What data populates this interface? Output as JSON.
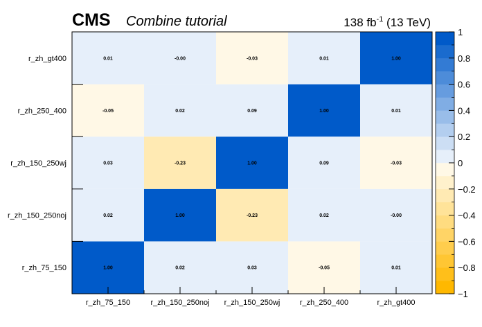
{
  "header": {
    "experiment": "CMS",
    "extra_text": "Combine tutorial",
    "lumi_value": "138 fb",
    "lumi_exp": "-1",
    "lumi_energy": " (13 TeV)"
  },
  "chart_data": {
    "type": "heatmap",
    "title": "",
    "x_labels": [
      "r_zh_75_150",
      "r_zh_150_250noj",
      "r_zh_150_250wj",
      "r_zh_250_400",
      "r_zh_gt400"
    ],
    "y_labels": [
      "r_zh_75_150",
      "r_zh_150_250noj",
      "r_zh_150_250wj",
      "r_zh_250_400",
      "r_zh_gt400"
    ],
    "y_order": "bottom-to-top",
    "values": [
      [
        1.0,
        0.02,
        0.03,
        -0.05,
        0.01
      ],
      [
        0.02,
        1.0,
        -0.23,
        0.02,
        -0.0
      ],
      [
        0.03,
        -0.23,
        1.0,
        0.09,
        -0.03
      ],
      [
        -0.05,
        0.02,
        0.09,
        1.0,
        0.01
      ],
      [
        0.01,
        -0.0,
        -0.03,
        0.01,
        1.0
      ]
    ],
    "cell_text": [
      [
        "1.00",
        "0.02",
        "0.03",
        "-0.05",
        "0.01"
      ],
      [
        "0.02",
        "1.00",
        "-0.23",
        "0.02",
        "-0.00"
      ],
      [
        "0.03",
        "-0.23",
        "1.00",
        "0.09",
        "-0.03"
      ],
      [
        "-0.05",
        "0.02",
        "0.09",
        "1.00",
        "0.01"
      ],
      [
        "0.01",
        "-0.00",
        "-0.03",
        "0.01",
        "1.00"
      ]
    ],
    "zlim": [
      -1,
      1
    ],
    "z_ticks": [
      {
        "value": 1,
        "label": "1"
      },
      {
        "value": 0.8,
        "label": "0.8"
      },
      {
        "value": 0.6,
        "label": "0.6"
      },
      {
        "value": 0.4,
        "label": "0.4"
      },
      {
        "value": 0.2,
        "label": "0.2"
      },
      {
        "value": 0,
        "label": "0"
      },
      {
        "value": -0.2,
        "label": "−0.2"
      },
      {
        "value": -0.4,
        "label": "−0.4"
      },
      {
        "value": -0.6,
        "label": "−0.6"
      },
      {
        "value": -0.8,
        "label": "−0.8"
      },
      {
        "value": -1,
        "label": "−1"
      }
    ],
    "color_scale": {
      "negative_max": "#ffb800",
      "neutral": "#ffffff",
      "positive_max": "#005ac9",
      "n_levels_per_side": 10
    },
    "legend": "right colorbar"
  }
}
